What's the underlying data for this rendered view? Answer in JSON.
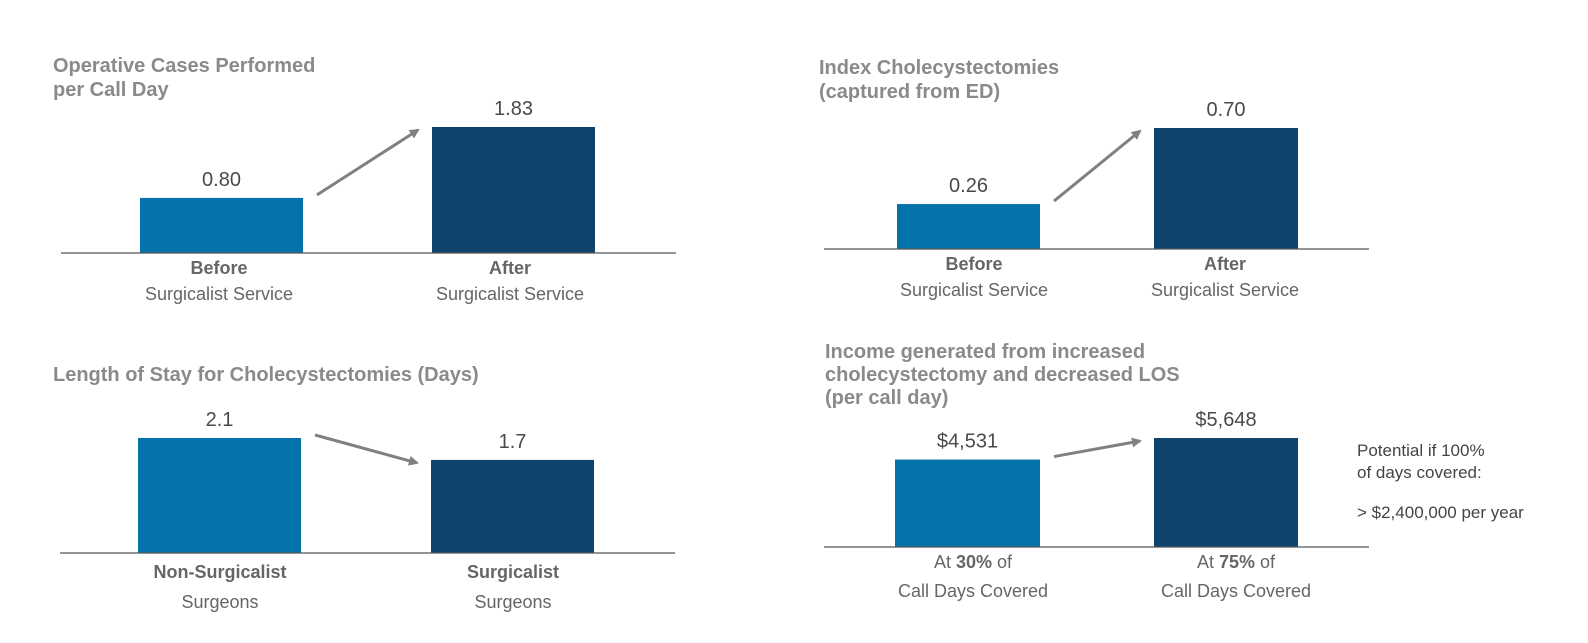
{
  "chart_data": [
    {
      "type": "bar",
      "title": [
        "Operative Cases Performed",
        "per Call Day"
      ],
      "categories": [
        {
          "strong": "Before",
          "rest": "Surgicalist Service"
        },
        {
          "strong": "After",
          "rest": "Surgicalist Service"
        }
      ],
      "values": [
        0.8,
        1.83
      ],
      "value_labels": [
        "0.80",
        "1.83"
      ],
      "ylim": [
        0,
        1.83
      ],
      "colors": [
        "#0573ab",
        "#10436b"
      ]
    },
    {
      "type": "bar",
      "title": [
        "Index Cholecystectomies",
        "(captured from ED)"
      ],
      "categories": [
        {
          "strong": "Before",
          "rest": "Surgicalist Service"
        },
        {
          "strong": "After",
          "rest": "Surgicalist Service"
        }
      ],
      "values": [
        0.26,
        0.7
      ],
      "value_labels": [
        "0.26",
        "0.70"
      ],
      "ylim": [
        0,
        0.7
      ],
      "colors": [
        "#0573ab",
        "#10436b"
      ]
    },
    {
      "type": "bar",
      "title": [
        "Length of Stay for Cholecystectomies (Days)"
      ],
      "categories": [
        {
          "strong": "Non-Surgicalist",
          "rest": "Surgeons"
        },
        {
          "strong": "Surgicalist",
          "rest": "Surgeons"
        }
      ],
      "values": [
        2.1,
        1.7
      ],
      "value_labels": [
        "2.1",
        "1.7"
      ],
      "ylim": [
        0,
        2.1
      ],
      "colors": [
        "#0573ab",
        "#10436b"
      ]
    },
    {
      "type": "bar",
      "title": [
        "Income generated from increased",
        "cholecystectomy and decreased LOS",
        "(per call day)"
      ],
      "categories": [
        {
          "pre": "At ",
          "strong": "30%",
          "post": " of",
          "rest": "Call Days Covered"
        },
        {
          "pre": "At ",
          "strong": "75%",
          "post": " of",
          "rest": "Call Days Covered"
        }
      ],
      "values": [
        4531,
        5648
      ],
      "value_labels": [
        "$4,531",
        "$5,648"
      ],
      "ylim": [
        0,
        5648
      ],
      "colors": [
        "#0573ab",
        "#10436b"
      ],
      "note": [
        "Potential if 100%",
        "of days covered:",
        "> $2,400,000 per year"
      ]
    }
  ]
}
